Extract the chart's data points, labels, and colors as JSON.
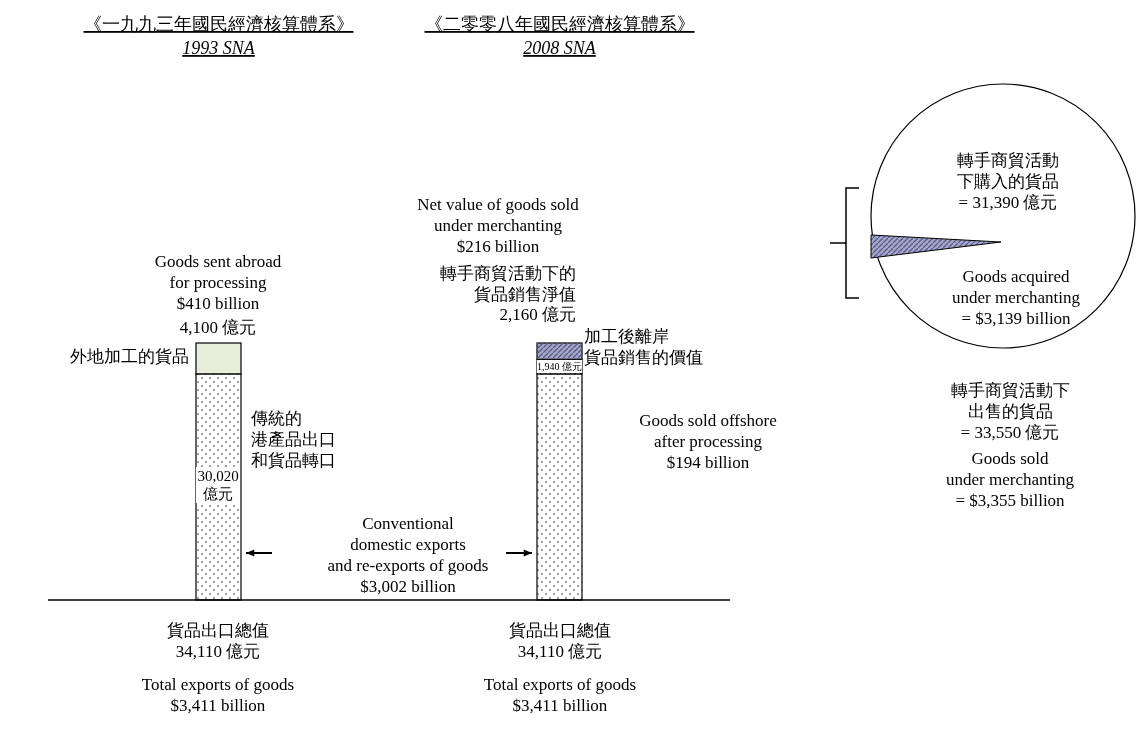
{
  "chart_data": {
    "type": "bar",
    "stacked": true,
    "categories": [
      "《一九九三年國民經濟核算體系》\n1993 SNA",
      "《二零零八年國民經濟核算體系》\n2008 SNA"
    ],
    "series": [
      {
        "name": "傳統的港產品出口和貨品轉口",
        "color": "#ffffff",
        "values": [
          30020,
          30020
        ],
        "value_labels": [
          "30,020 億元",
          null
        ]
      },
      {
        "name": "外地加工的貨品",
        "color": "#e9eedb",
        "values": [
          4100,
          null
        ],
        "value_labels": [
          "4,100 億元",
          null
        ]
      },
      {
        "name": "加工後離岸貨品銷售的價值",
        "color": "#ffffff",
        "values": [
          null,
          1940
        ],
        "value_labels": [
          null,
          "1,940 億元"
        ]
      },
      {
        "name": "轉手商貿活動下的貨品銷售淨值",
        "color": "#a4a7d4",
        "values": [
          null,
          2160
        ],
        "value_labels": [
          null,
          "2,160 億元"
        ]
      }
    ],
    "annotations": [
      "Goods sent abroad\nfor processing\n$410 billion",
      "Conventional\ndomestic exports\nand re-exports of goods\n$3,002 billion",
      "Net value of goods sold\nunder merchanting\n$216 billion",
      "Goods sold offshore\nafter processing\n$194 billion",
      "轉手商貿活動下購入的貨品\n= 31,390 億元",
      "Goods acquired\nunder merchanting\n= $3,139 billion",
      "轉手商貿活動下出售的貨品\n= 33,550 億元",
      "Goods sold\nunder merchanting\n= $3,355 billion",
      "貨品出口總值\n34,110 億元",
      "Total exports of goods\n$3,411 billion",
      "貨品出口總值\n34,110 億元",
      "Total exports of goods\n$3,411 billion"
    ]
  }
}
